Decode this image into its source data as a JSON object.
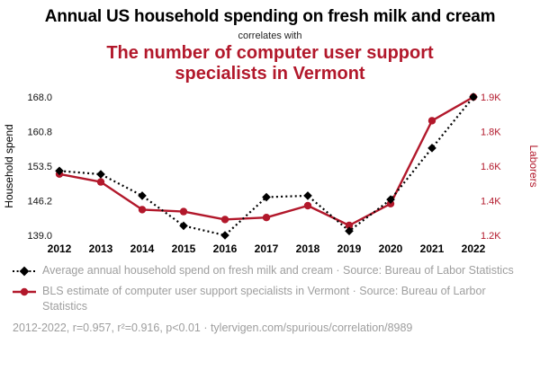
{
  "header": {
    "title_black": "Annual US household spending on fresh milk and cream",
    "connector": "correlates with",
    "title_red": "The number of computer user support specialists in Vermont"
  },
  "chart_data": {
    "type": "line",
    "x": [
      2012,
      2013,
      2014,
      2015,
      2016,
      2017,
      2018,
      2019,
      2020,
      2021,
      2022
    ],
    "series": [
      {
        "name": "Average annual household spend on fresh milk and cream",
        "axis": "left",
        "color": "#000000",
        "style": "dotted-diamond",
        "values": [
          152.5,
          151.8,
          147.3,
          141.0,
          139.0,
          147.0,
          147.3,
          139.9,
          146.5,
          157.3,
          168.0
        ]
      },
      {
        "name": "BLS estimate of computer user support specialists in Vermont",
        "axis": "right",
        "color": "#b2182b",
        "style": "solid-circle",
        "values": [
          1510,
          1470,
          1330,
          1320,
          1280,
          1290,
          1350,
          1250,
          1360,
          1780,
          1900
        ]
      }
    ],
    "left_axis": {
      "label": "Household spend",
      "min": 139.0,
      "max": 168.0,
      "ticks": [
        "168.0",
        "160.8",
        "153.5",
        "146.2",
        "139.0"
      ]
    },
    "right_axis": {
      "label": "Laborers",
      "min": 1200,
      "max": 1900,
      "ticks": [
        "1.9K",
        "1.8K",
        "1.6K",
        "1.4K",
        "1.2K"
      ]
    },
    "grid": false,
    "legend_position": "bottom"
  },
  "legend": [
    {
      "label": "Average annual household spend on fresh milk and cream · Source: Bureau of Labor Statistics",
      "color": "#000000",
      "marker": "diamond"
    },
    {
      "label": "BLS estimate of computer user support specialists in Vermont · Source: Bureau of Larbor Statistics",
      "color": "#b2182b",
      "marker": "circle"
    }
  ],
  "footer": {
    "stats": "2012-2022, r=0.957, r²=0.916, p<0.01 · tylervigen.com/spurious/correlation/8989"
  }
}
